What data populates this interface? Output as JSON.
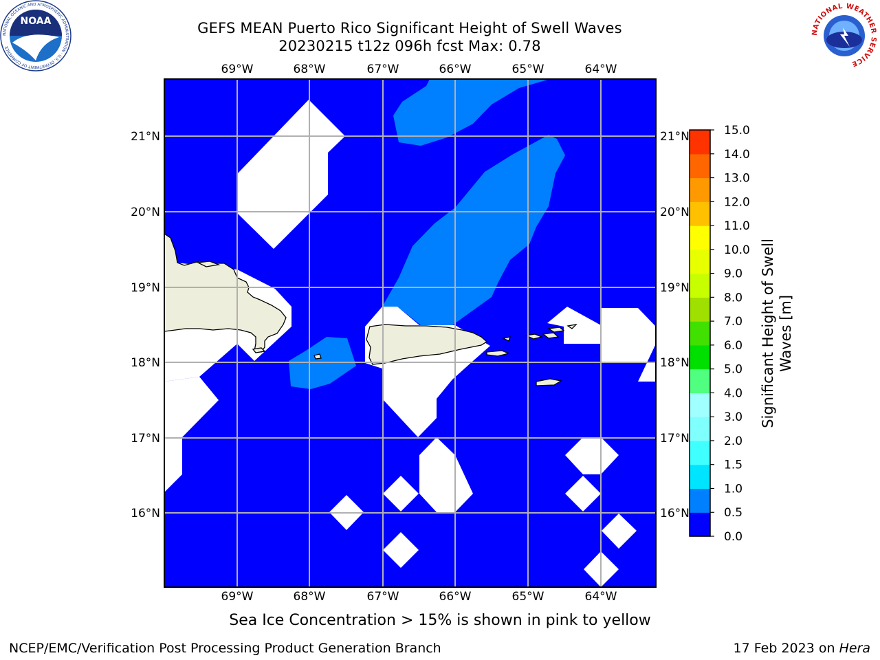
{
  "title_line1": "GEFS MEAN Puerto Rico Significant Height of Swell Waves",
  "title_line2": "20230215 t12z 096h fcst   Max: 0.78",
  "footnote": "Sea Ice Concentration > 15% is shown in pink to yellow",
  "credit": "NCEP/EMC/Verification Post Processing Product Generation Branch",
  "date_text": "17 Feb 2023 on",
  "date_host": "Hera",
  "logos": {
    "noaa_text": "NOAA",
    "noaa_ring": "NATIONAL OCEANIC AND ATMOSPHERIC ADMINISTRATION · U.S. DEPARTMENT OF COMMERCE",
    "nws_ring": "NATIONAL WEATHER SERVICE"
  },
  "map": {
    "lon_labels": [
      "69°W",
      "68°W",
      "67°W",
      "66°W",
      "65°W",
      "64°W"
    ],
    "lat_labels": [
      "21°N",
      "20°N",
      "19°N",
      "18°N",
      "17°N",
      "16°N"
    ],
    "ocean_color": "#0000ff",
    "swell_color": "#0080ff",
    "land_color": "#eeeedc"
  },
  "colorbar": {
    "label_line1": "Significant Height of Swell",
    "label_line2": "Waves [m]",
    "ticks": [
      "0.0",
      "0.5",
      "1.0",
      "1.5",
      "2.0",
      "3.0",
      "4.0",
      "5.0",
      "6.0",
      "7.0",
      "8.0",
      "9.0",
      "10.0",
      "11.0",
      "12.0",
      "13.0",
      "14.0",
      "15.0"
    ],
    "colors": [
      "#0000ff",
      "#0080ff",
      "#00e5ff",
      "#40ffff",
      "#80ffff",
      "#a0ffff",
      "#50ff80",
      "#00e000",
      "#40e000",
      "#a0e000",
      "#c8ff00",
      "#e8ff00",
      "#ffff00",
      "#ffc000",
      "#ff9900",
      "#ff6600",
      "#ff3300",
      "#ff0000"
    ]
  }
}
